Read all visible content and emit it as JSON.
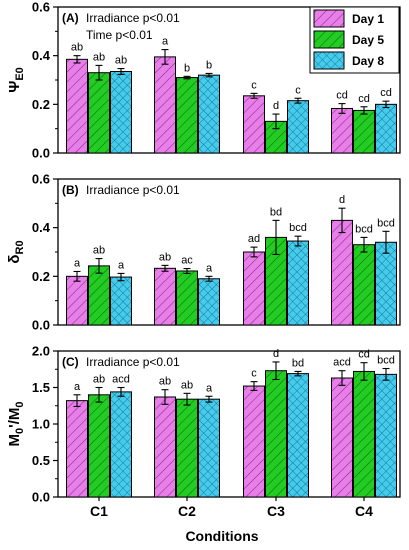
{
  "figure": {
    "xlabel": "Conditions",
    "categories": [
      "C1",
      "C2",
      "C3",
      "C4"
    ],
    "legend": [
      {
        "label": "Day 1",
        "color": "#e87ee8",
        "pattern": "diagonal-hatch"
      },
      {
        "label": "Day 5",
        "color": "#22cc22",
        "pattern": "diagonal-hatch"
      },
      {
        "label": "Day 8",
        "color": "#44ccee",
        "pattern": "cross-hatch"
      }
    ]
  },
  "chart_data": [
    {
      "type": "bar",
      "panel": "(A)",
      "ylabel": "ΨE0",
      "ylim": [
        0,
        0.6
      ],
      "yticks": [
        "0.0",
        "0.2",
        "0.4",
        "0.6"
      ],
      "annotations": [
        "Irradiance p<0.01",
        "Time p<0.01"
      ],
      "categories": [
        "C1",
        "C2",
        "C3",
        "C4"
      ],
      "series": [
        {
          "name": "Day 1",
          "values": [
            0.385,
            0.395,
            0.235,
            0.183
          ],
          "errors": [
            0.015,
            0.03,
            0.01,
            0.02
          ],
          "letters": [
            "ab",
            "a",
            "c",
            "cd"
          ]
        },
        {
          "name": "Day 5",
          "values": [
            0.33,
            0.31,
            0.13,
            0.175
          ],
          "errors": [
            0.03,
            0.005,
            0.03,
            0.015
          ],
          "letters": [
            "ab",
            "b",
            "d",
            "cd"
          ]
        },
        {
          "name": "Day 8",
          "values": [
            0.335,
            0.32,
            0.215,
            0.2
          ],
          "errors": [
            0.012,
            0.007,
            0.01,
            0.013
          ],
          "letters": [
            "ab",
            "b",
            "c",
            "cd"
          ]
        }
      ]
    },
    {
      "type": "bar",
      "panel": "(B)",
      "ylabel": "δR0",
      "ylim": [
        0,
        0.6
      ],
      "yticks": [
        "0.0",
        "0.2",
        "0.4",
        "0.6"
      ],
      "annotations": [
        "Irradiance p<0.01"
      ],
      "categories": [
        "C1",
        "C2",
        "C3",
        "C4"
      ],
      "series": [
        {
          "name": "Day 1",
          "values": [
            0.2,
            0.233,
            0.3,
            0.43
          ],
          "errors": [
            0.02,
            0.012,
            0.02,
            0.05
          ],
          "letters": [
            "a",
            "ab",
            "ad",
            "d"
          ]
        },
        {
          "name": "Day 5",
          "values": [
            0.243,
            0.222,
            0.36,
            0.33
          ],
          "errors": [
            0.03,
            0.01,
            0.07,
            0.03
          ],
          "letters": [
            "ab",
            "ac",
            "bd",
            "bcd"
          ]
        },
        {
          "name": "Day 8",
          "values": [
            0.197,
            0.19,
            0.345,
            0.34
          ],
          "errors": [
            0.015,
            0.01,
            0.02,
            0.045
          ],
          "letters": [
            "a",
            "a",
            "bcd",
            "bcd"
          ]
        }
      ]
    },
    {
      "type": "bar",
      "panel": "(C)",
      "ylabel": "M0'/M0",
      "ylim": [
        0,
        2.0
      ],
      "yticks": [
        "0.0",
        "0.5",
        "1.0",
        "1.5",
        "2.0"
      ],
      "annotations": [
        "Irradiance p<0.01"
      ],
      "categories": [
        "C1",
        "C2",
        "C3",
        "C4"
      ],
      "series": [
        {
          "name": "Day 1",
          "values": [
            1.32,
            1.37,
            1.52,
            1.63
          ],
          "errors": [
            0.08,
            0.1,
            0.06,
            0.1
          ],
          "letters": [
            "a",
            "ab",
            "c",
            "acd"
          ]
        },
        {
          "name": "Day 5",
          "values": [
            1.4,
            1.34,
            1.73,
            1.72
          ],
          "errors": [
            0.1,
            0.08,
            0.12,
            0.12
          ],
          "letters": [
            "ab",
            "ab",
            "d",
            "cd"
          ]
        },
        {
          "name": "Day 8",
          "values": [
            1.44,
            1.34,
            1.69,
            1.68
          ],
          "errors": [
            0.06,
            0.04,
            0.03,
            0.08
          ],
          "letters": [
            "acd",
            "a",
            "bd",
            "bcd"
          ]
        }
      ]
    }
  ]
}
